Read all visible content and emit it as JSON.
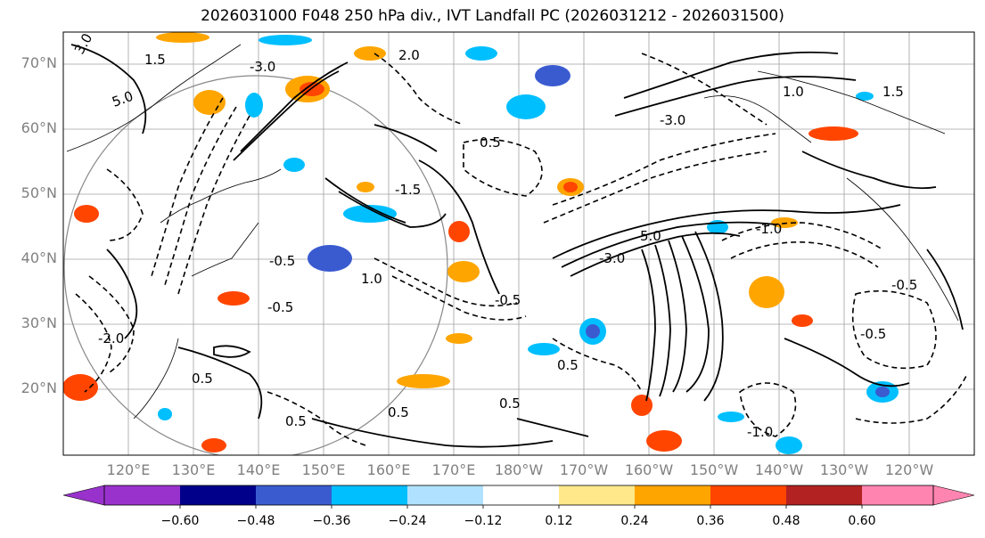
{
  "title": "2026031000 F048 250 hPa div., IVT Landfall PC (2026031212 - 2026031500)",
  "map": {
    "lat_labels": [
      "70°N",
      "60°N",
      "50°N",
      "40°N",
      "30°N",
      "20°N"
    ],
    "lon_labels": [
      "120°E",
      "130°E",
      "140°E",
      "150°E",
      "160°E",
      "170°E",
      "180°W",
      "170°W",
      "160°W",
      "150°W",
      "140°W",
      "130°W",
      "120°W"
    ],
    "contour_labels": [
      "3.0",
      "1.5",
      "-3.0",
      "2.0",
      "5.0",
      "-1.5",
      "0.5",
      "-0.5",
      "1.0",
      "-1.0",
      "-2.0",
      "1.5",
      "-0.5",
      "0.5",
      "-3.0",
      "5.0",
      "-3.0",
      "1.0",
      "-0.5",
      "0.5",
      "-0.5",
      "0.5",
      "-1.0",
      "0.5",
      "-0.5",
      "0.5"
    ],
    "fill_colors": {
      "lt_neg_060": "#9932cc",
      "neg_060_048": "#00008b",
      "neg_048_036": "#3a5bd0",
      "neg_036_024": "#00bfff",
      "neg_024_012": "#b0e2ff",
      "neg_012_012": "#ffffff",
      "pos_012_024": "#ffe88a",
      "pos_024_036": "#ffa500",
      "pos_036_048": "#ff4500",
      "pos_048_060": "#b22222",
      "gt_060": "#ff85b0"
    }
  },
  "colorbar": {
    "ticks": [
      "−0.60",
      "−0.48",
      "−0.36",
      "−0.24",
      "−0.12",
      "0.12",
      "0.24",
      "0.36",
      "0.48",
      "0.60"
    ],
    "colors": [
      "#9932cc",
      "#00008b",
      "#3a5bd0",
      "#00bfff",
      "#b0e2ff",
      "#ffffff",
      "#ffe88a",
      "#ffa500",
      "#ff4500",
      "#b22222",
      "#ff85b0"
    ]
  }
}
